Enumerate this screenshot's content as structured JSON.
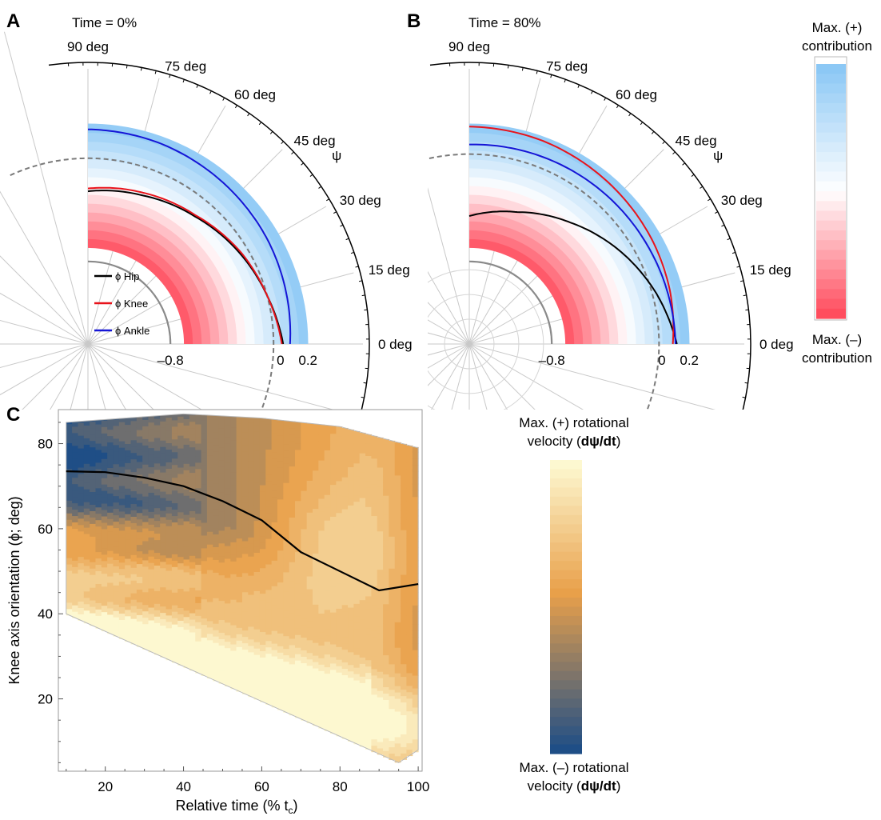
{
  "panel_labels": {
    "A": "A",
    "B": "B",
    "C": "C"
  },
  "colors": {
    "hip": "#000000",
    "knee": "#e8131b",
    "ankle": "#1515d6",
    "max_pos": "#8cc8f5",
    "max_neg": "#ff4d5e",
    "velocity_high": "#fdf8d0",
    "velocity_mid": "#e9a04a",
    "velocity_low": "#1f4e86"
  },
  "chart_data": [
    {
      "type": "polar",
      "panel": "A",
      "title": "Time = 0%",
      "angle_ticks": [
        "0 deg",
        "15 deg",
        "30 deg",
        "45 deg",
        "60 deg",
        "75 deg",
        "90 deg"
      ],
      "angle_values": [
        0,
        15,
        30,
        45,
        60,
        75,
        90
      ],
      "angle_axis_label": "ψ",
      "radial_ticks": [
        -0.8,
        0,
        0.2
      ],
      "radial_tick_labels": [
        "–0.8",
        "0",
        "0.2"
      ],
      "radial_range": [
        -1.4,
        0.6
      ],
      "band_range": [
        -0.7,
        0.2
      ],
      "reference_circle": -0.8,
      "dashed_boundary": -0.05,
      "legend": [
        "ϕ Hip",
        "ϕ Knee",
        "ϕ Ankle"
      ],
      "series": [
        {
          "name": "ϕ Hip",
          "key": "hip",
          "points": [
            [
              90,
              -0.29
            ],
            [
              70,
              -0.25
            ],
            [
              50,
              -0.19
            ],
            [
              30,
              -0.11
            ],
            [
              15,
              -0.05
            ],
            [
              0,
              0.02
            ]
          ]
        },
        {
          "name": "ϕ Knee",
          "key": "knee",
          "points": [
            [
              90,
              -0.27
            ],
            [
              70,
              -0.23
            ],
            [
              50,
              -0.18
            ],
            [
              30,
              -0.1
            ],
            [
              15,
              -0.05
            ],
            [
              0,
              0.01
            ]
          ]
        },
        {
          "name": "ϕ Ankle",
          "key": "ankle",
          "points": [
            [
              90,
              0.16
            ],
            [
              70,
              0.15
            ],
            [
              50,
              0.13
            ],
            [
              30,
              0.11
            ],
            [
              15,
              0.09
            ],
            [
              0,
              0.07
            ]
          ]
        }
      ]
    },
    {
      "type": "polar",
      "panel": "B",
      "title": "Time = 80%",
      "angle_ticks": [
        "0 deg",
        "15 deg",
        "30 deg",
        "45 deg",
        "60 deg",
        "75 deg",
        "90 deg"
      ],
      "angle_values": [
        0,
        15,
        30,
        45,
        60,
        75,
        90
      ],
      "angle_axis_label": "ψ",
      "radial_ticks": [
        -0.8,
        0,
        0.2
      ],
      "radial_tick_labels": [
        "–0.8",
        "0",
        "0.2"
      ],
      "radial_range": [
        -1.4,
        0.6
      ],
      "band_range": [
        -0.7,
        0.2
      ],
      "reference_circle": -0.8,
      "dashed_boundary": -0.02,
      "series": [
        {
          "name": "ϕ Hip",
          "key": "hip",
          "points": [
            [
              90,
              -0.47
            ],
            [
              70,
              -0.38
            ],
            [
              50,
              -0.25
            ],
            [
              30,
              -0.1
            ],
            [
              15,
              0.01
            ],
            [
              0,
              0.11
            ]
          ]
        },
        {
          "name": "ϕ Knee",
          "key": "knee",
          "points": [
            [
              90,
              0.18
            ],
            [
              70,
              0.17
            ],
            [
              50,
              0.15
            ],
            [
              30,
              0.13
            ],
            [
              15,
              0.11
            ],
            [
              0,
              0.08
            ]
          ]
        },
        {
          "name": "ϕ Ankle",
          "key": "ankle",
          "points": [
            [
              90,
              0.05
            ],
            [
              70,
              0.06
            ],
            [
              50,
              0.07
            ],
            [
              30,
              0.08
            ],
            [
              15,
              0.09
            ],
            [
              0,
              0.1
            ]
          ]
        }
      ]
    },
    {
      "type": "heatmap",
      "panel": "C",
      "xlabel": "Relative time (% t",
      "xlabel_sub": "c",
      "xlabel_end": ")",
      "ylabel": "Knee axis orientation (ϕ; deg)",
      "x_ticks": [
        20,
        40,
        60,
        80,
        100
      ],
      "y_ticks": [
        20,
        40,
        60,
        80
      ],
      "xlim": [
        8,
        101
      ],
      "ylim": [
        3,
        88
      ],
      "region": {
        "upper": [
          [
            10,
            85
          ],
          [
            40,
            87
          ],
          [
            60,
            86
          ],
          [
            80,
            84
          ],
          [
            100,
            79
          ]
        ],
        "lower": [
          [
            10,
            40
          ],
          [
            95,
            5
          ],
          [
            100,
            8
          ]
        ]
      },
      "line": {
        "x": [
          10,
          20,
          30,
          40,
          50,
          60,
          70,
          80,
          90,
          100
        ],
        "y": [
          73.5,
          73.3,
          72,
          70,
          66.5,
          62,
          54.5,
          50,
          45.5,
          47
        ]
      }
    }
  ],
  "colorbars": {
    "contribution": {
      "top": "Max. (+)",
      "top2": "contribution",
      "bottom": "Max. (–)",
      "bottom2": "contribution",
      "steps": 26
    },
    "velocity": {
      "top": "Max. (+) rotational",
      "top2_prefix": "velocity (",
      "top2_bold": "dψ/dt",
      "top2_suffix": ")",
      "bottom": "Max. (–) rotational",
      "bottom2_prefix": "velocity (",
      "bottom2_bold": "dψ/dt",
      "bottom2_suffix": ")",
      "steps": 32
    }
  }
}
